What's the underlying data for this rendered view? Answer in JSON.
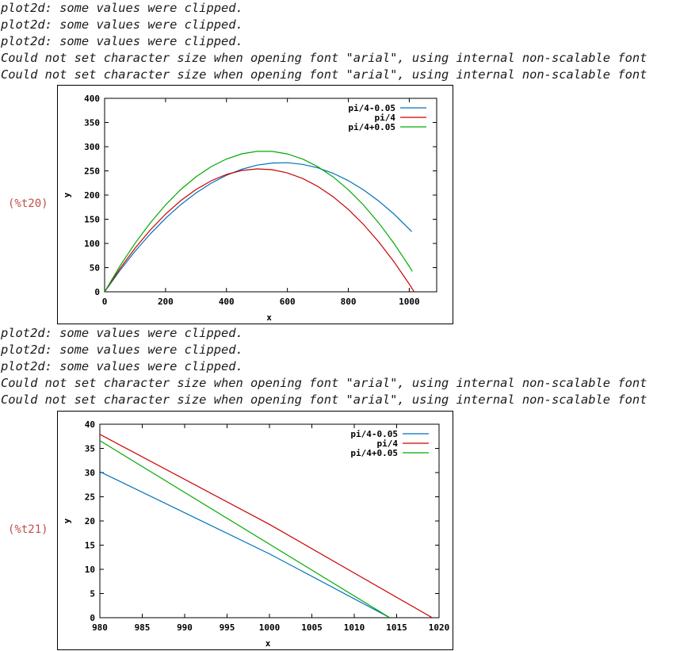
{
  "messages_top": [
    "plot2d: some values were clipped.",
    "plot2d: some values were clipped.",
    "plot2d: some values were clipped.",
    "Could not set character size when opening font \"arial\", using internal non-scalable font",
    "Could not set character size when opening font \"arial\", using internal non-scalable font"
  ],
  "messages_bottom": [
    "plot2d: some values were clipped.",
    "plot2d: some values were clipped.",
    "plot2d: some values were clipped.",
    "Could not set character size when opening font \"arial\", using internal non-scalable font",
    "Could not set character size when opening font \"arial\", using internal non-scalable font"
  ],
  "output_labels": {
    "t20": "(%t20)",
    "t21": "(%t21)"
  },
  "colors": {
    "label": "#c0504d",
    "series": [
      "#0072bd",
      "#cc0000",
      "#00aa00"
    ]
  },
  "chart_data": [
    {
      "type": "line",
      "xlabel": "x",
      "ylabel": "y",
      "xlim": [
        0,
        1090
      ],
      "ylim": [
        0,
        400
      ],
      "xticks": [
        0,
        200,
        400,
        600,
        800,
        1000
      ],
      "yticks": [
        0,
        50,
        100,
        150,
        200,
        250,
        300,
        350,
        400
      ],
      "grid": false,
      "legend": "top-right",
      "series": [
        {
          "name": "pi/4-0.05",
          "color": "#0072bd",
          "x": [
            0,
            50,
            100,
            150,
            200,
            250,
            300,
            350,
            400,
            450,
            500,
            550,
            600,
            650,
            700,
            750,
            800,
            850,
            900,
            950,
            1000,
            1008
          ],
          "y": [
            0,
            43.7,
            83.7,
            119.8,
            151.9,
            180.1,
            204.3,
            224.6,
            240.9,
            253.3,
            261.8,
            266.3,
            266.9,
            263.5,
            256.2,
            245.0,
            229.8,
            210.7,
            187.6,
            160.6,
            129.7,
            124.4
          ]
        },
        {
          "name": "pi/4",
          "color": "#cc0000",
          "x": [
            0,
            50,
            100,
            150,
            200,
            250,
            300,
            350,
            400,
            450,
            500,
            550,
            600,
            650,
            700,
            750,
            800,
            850,
            900,
            950,
            1000,
            1015
          ],
          "y": [
            0,
            47.5,
            90.1,
            127.8,
            160.6,
            188.5,
            211.4,
            229.5,
            242.6,
            250.8,
            254.1,
            252.4,
            245.8,
            234.3,
            217.9,
            196.6,
            170.3,
            139.1,
            103.0,
            62.0,
            16.0,
            1.0
          ]
        },
        {
          "name": "pi/4+0.05",
          "color": "#00aa00",
          "x": [
            0,
            50,
            100,
            150,
            200,
            250,
            300,
            350,
            400,
            450,
            500,
            550,
            600,
            650,
            700,
            750,
            800,
            850,
            900,
            950,
            1000,
            1010
          ],
          "y": [
            0,
            52.9,
            100.4,
            142.7,
            179.7,
            211.4,
            237.7,
            258.8,
            274.6,
            285.2,
            290.4,
            290.4,
            285.1,
            274.5,
            258.6,
            237.5,
            211.0,
            179.3,
            142.3,
            100.0,
            52.4,
            42.1
          ]
        }
      ]
    },
    {
      "type": "line",
      "xlabel": "x",
      "ylabel": "y",
      "xlim": [
        980,
        1020
      ],
      "ylim": [
        0,
        40
      ],
      "xticks": [
        980,
        985,
        990,
        995,
        1000,
        1005,
        1010,
        1015,
        1020
      ],
      "yticks": [
        0,
        5,
        10,
        15,
        20,
        25,
        30,
        35,
        40
      ],
      "grid": false,
      "legend": "top-right",
      "series": [
        {
          "name": "pi/4-0.05",
          "color": "#0072bd",
          "x": [
            980,
            1000,
            1014.2
          ],
          "y": [
            30.2,
            13.2,
            0
          ]
        },
        {
          "name": "pi/4",
          "color": "#cc0000",
          "x": [
            980,
            1000,
            1019.2
          ],
          "y": [
            37.9,
            19.3,
            0
          ]
        },
        {
          "name": "pi/4+0.05",
          "color": "#00aa00",
          "x": [
            980,
            1000,
            1014.2
          ],
          "y": [
            36.6,
            15.2,
            0
          ]
        }
      ]
    }
  ]
}
